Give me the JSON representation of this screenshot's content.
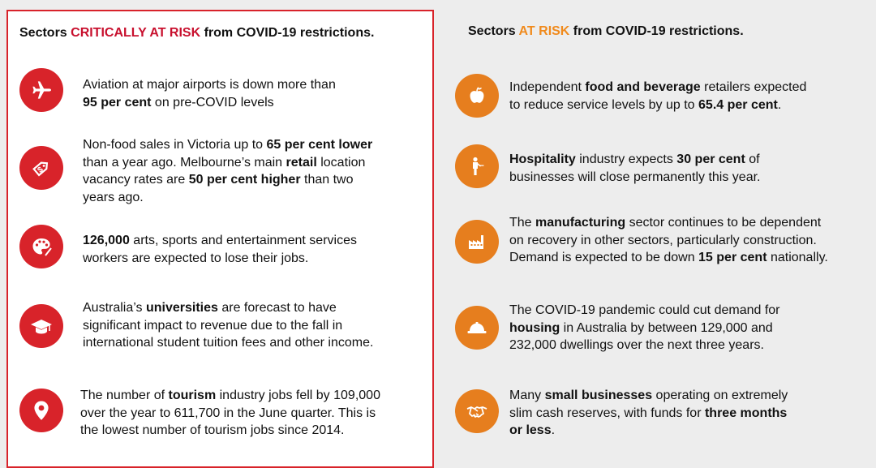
{
  "left_panel": {
    "title": {
      "prefix": "Sectors ",
      "highlight": "CRITICALLY AT RISK",
      "suffix": " from COVID-19 restrictions."
    },
    "items": [
      {
        "icon": "airplane-icon",
        "lines": [
          [
            {
              "t": "Aviation at major airports is down more than"
            }
          ],
          [
            {
              "t": "95 per cent",
              "b": true
            },
            {
              "t": " on pre-COVID levels"
            }
          ]
        ]
      },
      {
        "icon": "price-tag-icon",
        "lines": [
          [
            {
              "t": "Non-food sales in Victoria up to "
            },
            {
              "t": "65 per cent lower",
              "b": true
            }
          ],
          [
            {
              "t": "than a year ago. Melbourne’s main "
            },
            {
              "t": "retail",
              "b": true
            },
            {
              "t": " location"
            }
          ],
          [
            {
              "t": "vacancy rates are "
            },
            {
              "t": "50 per cent higher",
              "b": true
            },
            {
              "t": " than two"
            }
          ],
          [
            {
              "t": "years ago."
            }
          ]
        ]
      },
      {
        "icon": "palette-icon",
        "lines": [
          [
            {
              "t": "126,000",
              "b": true
            },
            {
              "t": " arts, sports and entertainment services"
            }
          ],
          [
            {
              "t": "workers are expected to lose their jobs."
            }
          ]
        ]
      },
      {
        "icon": "graduation-cap-icon",
        "lines": [
          [
            {
              "t": "Australia’s "
            },
            {
              "t": "universities",
              "b": true
            },
            {
              "t": " are forecast to have"
            }
          ],
          [
            {
              "t": "significant impact to revenue due to the fall in"
            }
          ],
          [
            {
              "t": "international student tuition fees and other income."
            }
          ]
        ]
      },
      {
        "icon": "map-pin-icon",
        "lines": [
          [
            {
              "t": "The number of "
            },
            {
              "t": "tourism",
              "b": true
            },
            {
              "t": " industry jobs fell by 109,000"
            }
          ],
          [
            {
              "t": "over the year to 611,700 in the June quarter. This is"
            }
          ],
          [
            {
              "t": "the lowest number of tourism jobs since 2014."
            }
          ]
        ]
      }
    ]
  },
  "right_panel": {
    "title": {
      "prefix": "Sectors ",
      "highlight": "AT RISK",
      "suffix": " from COVID-19 restrictions."
    },
    "items": [
      {
        "icon": "apple-icon",
        "lines": [
          [
            {
              "t": "Independent "
            },
            {
              "t": "food and beverage",
              "b": true
            },
            {
              "t": " retailers expected"
            }
          ],
          [
            {
              "t": "to reduce service levels by up to "
            },
            {
              "t": "65.4 per cent",
              "b": true
            },
            {
              "t": "."
            }
          ]
        ]
      },
      {
        "icon": "waiter-icon",
        "lines": [
          [
            {
              "t": "Hospitality",
              "b": true
            },
            {
              "t": " industry expects "
            },
            {
              "t": "30 per cent",
              "b": true
            },
            {
              "t": " of"
            }
          ],
          [
            {
              "t": "businesses will close permanently this year."
            }
          ]
        ]
      },
      {
        "icon": "factory-icon",
        "lines": [
          [
            {
              "t": "The "
            },
            {
              "t": "manufacturing",
              "b": true
            },
            {
              "t": " sector continues to be dependent"
            }
          ],
          [
            {
              "t": "on recovery in other sectors, particularly construction."
            }
          ],
          [
            {
              "t": "Demand is expected to be down "
            },
            {
              "t": "15 per cent",
              "b": true
            },
            {
              "t": " nationally."
            }
          ]
        ]
      },
      {
        "icon": "hard-hat-icon",
        "lines": [
          [
            {
              "t": "The COVID-19 pandemic could cut demand for"
            }
          ],
          [
            {
              "t": "housing",
              "b": true
            },
            {
              "t": " in Australia by between 129,000 and"
            }
          ],
          [
            {
              "t": "232,000 dwellings over the next three years."
            }
          ]
        ]
      },
      {
        "icon": "handshake-icon",
        "lines": [
          [
            {
              "t": "Many "
            },
            {
              "t": "small businesses",
              "b": true
            },
            {
              "t": " operating on extremely"
            }
          ],
          [
            {
              "t": "slim cash reserves, with funds for "
            },
            {
              "t": "three months",
              "b": true
            }
          ],
          [
            {
              "t": "or less",
              "b": true
            },
            {
              "t": "."
            }
          ]
        ]
      }
    ]
  },
  "colors": {
    "critical": "#d8232a",
    "at_risk": "#e67e1e",
    "critical_text": "#c8102e",
    "at_risk_text": "#f08a1c"
  }
}
